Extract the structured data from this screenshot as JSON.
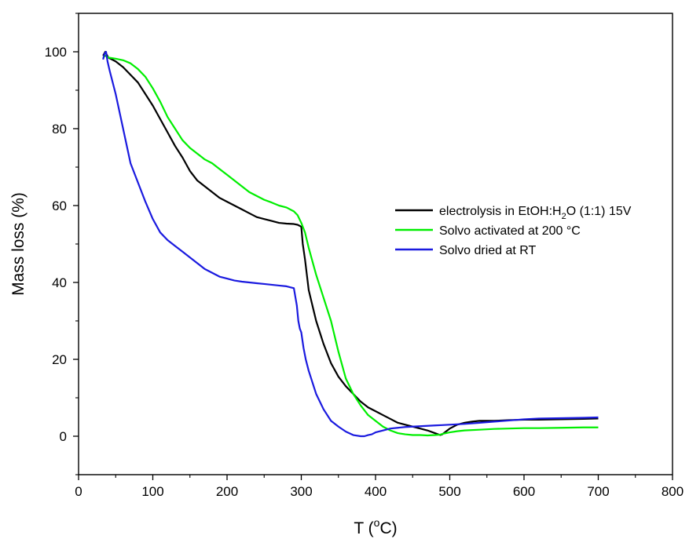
{
  "chart_data": {
    "type": "line",
    "title": "",
    "xlabel": "T (°C)",
    "xlabel_parts": {
      "main": "T (",
      "sup": "o",
      "tail": "C)"
    },
    "ylabel": "Mass loss (%)",
    "xlim": [
      0,
      800
    ],
    "ylim": [
      -10,
      110
    ],
    "xticks": [
      0,
      100,
      200,
      300,
      400,
      500,
      600,
      700,
      800
    ],
    "yticks": [
      0,
      20,
      40,
      60,
      80,
      100
    ],
    "grid": false,
    "legend_placement": "right",
    "series": [
      {
        "name": "electrolysis in EtOH:H2O (1:1) 15V",
        "label_parts": {
          "pre": "electrolysis in EtOH:H",
          "sub": "2",
          "post": "O (1:1) 15V"
        },
        "color": "#000000",
        "x": [
          33,
          36,
          40,
          50,
          60,
          70,
          80,
          90,
          100,
          110,
          120,
          130,
          140,
          150,
          160,
          170,
          180,
          190,
          200,
          210,
          220,
          230,
          240,
          250,
          260,
          270,
          280,
          290,
          295,
          300,
          302,
          305,
          310,
          320,
          330,
          340,
          350,
          360,
          370,
          380,
          390,
          400,
          410,
          420,
          430,
          440,
          450,
          460,
          470,
          480,
          487,
          490,
          500,
          510,
          520,
          530,
          540,
          560,
          580,
          600,
          620,
          650,
          680,
          700
        ],
        "y": [
          99,
          100,
          98.5,
          97.5,
          96,
          94,
          92,
          89,
          86,
          82.5,
          79,
          75.5,
          72.5,
          69,
          66.5,
          65,
          63.5,
          62,
          61,
          60,
          59,
          58,
          57,
          56.5,
          56,
          55.5,
          55.3,
          55.2,
          55,
          54.5,
          50,
          46,
          38,
          30,
          24,
          19,
          15.5,
          13,
          11,
          9,
          7.5,
          6.5,
          5.5,
          4.5,
          3.5,
          3,
          2.5,
          2,
          1.5,
          0.8,
          0.3,
          0.5,
          2,
          3,
          3.5,
          3.8,
          4,
          4,
          4.2,
          4.3,
          4.3,
          4.4,
          4.5,
          4.6
        ]
      },
      {
        "name": "Solvo activated at 200 °C",
        "label_parts": {
          "pre": "Solvo activated at 200 °C",
          "sub": "",
          "post": ""
        },
        "color": "#00ee00",
        "x": [
          33,
          36,
          40,
          50,
          60,
          70,
          80,
          90,
          100,
          110,
          120,
          130,
          140,
          150,
          160,
          170,
          180,
          190,
          200,
          210,
          220,
          230,
          240,
          250,
          260,
          270,
          280,
          290,
          295,
          300,
          305,
          310,
          320,
          330,
          340,
          350,
          360,
          370,
          380,
          390,
          400,
          410,
          420,
          430,
          440,
          450,
          460,
          470,
          480,
          487,
          490,
          500,
          510,
          520,
          540,
          560,
          580,
          600,
          620,
          650,
          680,
          700
        ],
        "y": [
          98.5,
          99,
          98.5,
          98.2,
          97.8,
          97,
          95.5,
          93.5,
          90.5,
          87,
          83,
          80,
          77,
          75,
          73.5,
          72,
          71,
          69.5,
          68,
          66.5,
          65,
          63.5,
          62.5,
          61.5,
          60.8,
          60,
          59.5,
          58.5,
          57.5,
          55.5,
          53,
          49,
          42,
          36,
          30,
          22,
          15,
          11,
          8,
          5.5,
          4,
          2.5,
          1.5,
          0.8,
          0.5,
          0.3,
          0.3,
          0.2,
          0.3,
          0.4,
          0.6,
          1,
          1.3,
          1.5,
          1.7,
          1.9,
          2,
          2.1,
          2.1,
          2.2,
          2.3,
          2.3
        ]
      },
      {
        "name": "Solvo dried at RT",
        "label_parts": {
          "pre": "Solvo dried at RT",
          "sub": "",
          "post": ""
        },
        "color": "#1a1adf",
        "x": [
          33,
          35,
          37,
          39,
          42,
          50,
          60,
          70,
          80,
          90,
          100,
          110,
          120,
          130,
          140,
          150,
          160,
          170,
          180,
          190,
          200,
          210,
          220,
          230,
          240,
          250,
          260,
          270,
          280,
          290,
          294,
          296,
          298,
          300,
          303,
          306,
          310,
          320,
          330,
          340,
          350,
          360,
          370,
          380,
          385,
          390,
          395,
          400,
          410,
          420,
          430,
          440,
          450,
          460,
          470,
          480,
          490,
          500,
          520,
          540,
          560,
          580,
          600,
          620,
          650,
          680,
          700
        ],
        "y": [
          98,
          99.5,
          100,
          97.5,
          95,
          89,
          80,
          71,
          66,
          61,
          56.5,
          53,
          51,
          49.5,
          48,
          46.5,
          45,
          43.5,
          42.5,
          41.5,
          41,
          40.5,
          40.2,
          40,
          39.8,
          39.6,
          39.4,
          39.2,
          39,
          38.5,
          34,
          30,
          28,
          27,
          23,
          20,
          17,
          11,
          7,
          4,
          2.5,
          1.2,
          0.3,
          0,
          0,
          0.3,
          0.5,
          1,
          1.5,
          2,
          2.2,
          2.4,
          2.5,
          2.6,
          2.7,
          2.8,
          2.9,
          3,
          3.2,
          3.5,
          3.8,
          4.1,
          4.4,
          4.6,
          4.7,
          4.8,
          4.9
        ]
      }
    ]
  }
}
